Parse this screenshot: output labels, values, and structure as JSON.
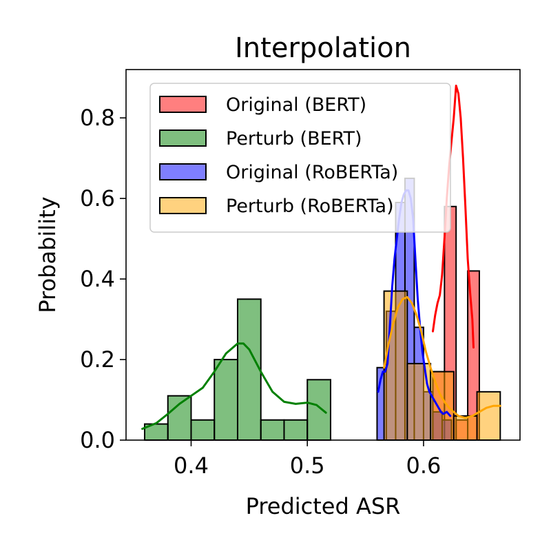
{
  "chart_data": {
    "type": "bar",
    "subtype": "histogram-with-kde",
    "title": "Interpolation",
    "xlabel": "Predicted ASR",
    "ylabel": "Probability",
    "xlim": [
      0.344,
      0.683
    ],
    "ylim": [
      0,
      0.92
    ],
    "xticks": [
      0.4,
      0.5,
      0.6
    ],
    "xtick_labels": [
      "0.4",
      "0.5",
      "0.6"
    ],
    "yticks": [
      0.0,
      0.2,
      0.4,
      0.6,
      0.8
    ],
    "ytick_labels": [
      "0.0",
      "0.2",
      "0.4",
      "0.6",
      "0.8"
    ],
    "grid": false,
    "legend_position": "top-right",
    "series": [
      {
        "name": "Original (BERT)",
        "color": "#ff0000",
        "bins": [
          {
            "x0": 0.608,
            "x1": 0.618,
            "y": 0.17
          },
          {
            "x0": 0.618,
            "x1": 0.628,
            "y": 0.58
          },
          {
            "x0": 0.628,
            "x1": 0.638,
            "y": 0.05
          },
          {
            "x0": 0.638,
            "x1": 0.648,
            "y": 0.42
          }
        ],
        "kde": [
          [
            0.608,
            0.27
          ],
          [
            0.61,
            0.31
          ],
          [
            0.612,
            0.34
          ],
          [
            0.614,
            0.36
          ],
          [
            0.616,
            0.41
          ],
          [
            0.618,
            0.5
          ],
          [
            0.62,
            0.6
          ],
          [
            0.622,
            0.68
          ],
          [
            0.624,
            0.74
          ],
          [
            0.626,
            0.8
          ],
          [
            0.628,
            0.88
          ],
          [
            0.63,
            0.86
          ],
          [
            0.632,
            0.8
          ],
          [
            0.634,
            0.7
          ],
          [
            0.636,
            0.58
          ],
          [
            0.638,
            0.45
          ],
          [
            0.64,
            0.37
          ],
          [
            0.642,
            0.3
          ],
          [
            0.643,
            0.23
          ]
        ]
      },
      {
        "name": "Perturb (BERT)",
        "color": "#008000",
        "bins": [
          {
            "x0": 0.36,
            "x1": 0.38,
            "y": 0.04
          },
          {
            "x0": 0.38,
            "x1": 0.4,
            "y": 0.11
          },
          {
            "x0": 0.4,
            "x1": 0.42,
            "y": 0.05
          },
          {
            "x0": 0.42,
            "x1": 0.44,
            "y": 0.2
          },
          {
            "x0": 0.44,
            "x1": 0.46,
            "y": 0.35
          },
          {
            "x0": 0.46,
            "x1": 0.48,
            "y": 0.05
          },
          {
            "x0": 0.48,
            "x1": 0.5,
            "y": 0.05
          },
          {
            "x0": 0.5,
            "x1": 0.52,
            "y": 0.15
          }
        ],
        "kde": [
          [
            0.358,
            0.028
          ],
          [
            0.37,
            0.042
          ],
          [
            0.38,
            0.065
          ],
          [
            0.39,
            0.09
          ],
          [
            0.4,
            0.11
          ],
          [
            0.41,
            0.13
          ],
          [
            0.42,
            0.17
          ],
          [
            0.43,
            0.215
          ],
          [
            0.44,
            0.24
          ],
          [
            0.445,
            0.24
          ],
          [
            0.45,
            0.225
          ],
          [
            0.46,
            0.17
          ],
          [
            0.47,
            0.12
          ],
          [
            0.48,
            0.095
          ],
          [
            0.49,
            0.09
          ],
          [
            0.5,
            0.093
          ],
          [
            0.508,
            0.087
          ],
          [
            0.516,
            0.068
          ]
        ]
      },
      {
        "name": "Original (RoBERTa)",
        "color": "#0000ff",
        "bins": [
          {
            "x0": 0.56,
            "x1": 0.568,
            "y": 0.18
          },
          {
            "x0": 0.568,
            "x1": 0.576,
            "y": 0.32
          },
          {
            "x0": 0.576,
            "x1": 0.584,
            "y": 0.59
          },
          {
            "x0": 0.584,
            "x1": 0.592,
            "y": 0.65
          },
          {
            "x0": 0.592,
            "x1": 0.6,
            "y": 0.28
          },
          {
            "x0": 0.6,
            "x1": 0.608,
            "y": 0.12
          },
          {
            "x0": 0.608,
            "x1": 0.616,
            "y": 0.07
          },
          {
            "x0": 0.616,
            "x1": 0.624,
            "y": 0.05
          }
        ],
        "kde": [
          [
            0.561,
            0.12
          ],
          [
            0.563,
            0.15
          ],
          [
            0.565,
            0.17
          ],
          [
            0.567,
            0.17
          ],
          [
            0.569,
            0.19
          ],
          [
            0.571,
            0.28
          ],
          [
            0.573,
            0.38
          ],
          [
            0.575,
            0.45
          ],
          [
            0.577,
            0.5
          ],
          [
            0.579,
            0.55
          ],
          [
            0.581,
            0.59
          ],
          [
            0.583,
            0.61
          ],
          [
            0.585,
            0.62
          ],
          [
            0.587,
            0.62
          ],
          [
            0.589,
            0.6
          ],
          [
            0.591,
            0.55
          ],
          [
            0.593,
            0.45
          ],
          [
            0.595,
            0.35
          ],
          [
            0.597,
            0.28
          ],
          [
            0.599,
            0.22
          ],
          [
            0.601,
            0.18
          ],
          [
            0.603,
            0.14
          ],
          [
            0.605,
            0.12
          ],
          [
            0.607,
            0.11
          ],
          [
            0.609,
            0.1
          ],
          [
            0.611,
            0.09
          ],
          [
            0.613,
            0.08
          ],
          [
            0.615,
            0.07
          ],
          [
            0.617,
            0.065
          ],
          [
            0.62,
            0.07
          ],
          [
            0.623,
            0.06
          ]
        ]
      },
      {
        "name": "Perturb (RoBERTa)",
        "color": "#ffa500",
        "bins": [
          {
            "x0": 0.566,
            "x1": 0.586,
            "y": 0.37
          },
          {
            "x0": 0.586,
            "x1": 0.606,
            "y": 0.19
          },
          {
            "x0": 0.606,
            "x1": 0.626,
            "y": 0.17
          },
          {
            "x0": 0.626,
            "x1": 0.646,
            "y": 0.06
          },
          {
            "x0": 0.646,
            "x1": 0.666,
            "y": 0.12
          }
        ],
        "kde": [
          [
            0.566,
            0.18
          ],
          [
            0.57,
            0.24
          ],
          [
            0.574,
            0.29
          ],
          [
            0.578,
            0.33
          ],
          [
            0.582,
            0.35
          ],
          [
            0.586,
            0.355
          ],
          [
            0.59,
            0.34
          ],
          [
            0.594,
            0.31
          ],
          [
            0.598,
            0.27
          ],
          [
            0.602,
            0.22
          ],
          [
            0.606,
            0.18
          ],
          [
            0.61,
            0.145
          ],
          [
            0.614,
            0.115
          ],
          [
            0.618,
            0.095
          ],
          [
            0.622,
            0.08
          ],
          [
            0.626,
            0.07
          ],
          [
            0.63,
            0.06
          ],
          [
            0.636,
            0.055
          ],
          [
            0.642,
            0.06
          ],
          [
            0.648,
            0.07
          ],
          [
            0.654,
            0.08
          ],
          [
            0.66,
            0.085
          ],
          [
            0.666,
            0.085
          ]
        ]
      }
    ]
  }
}
